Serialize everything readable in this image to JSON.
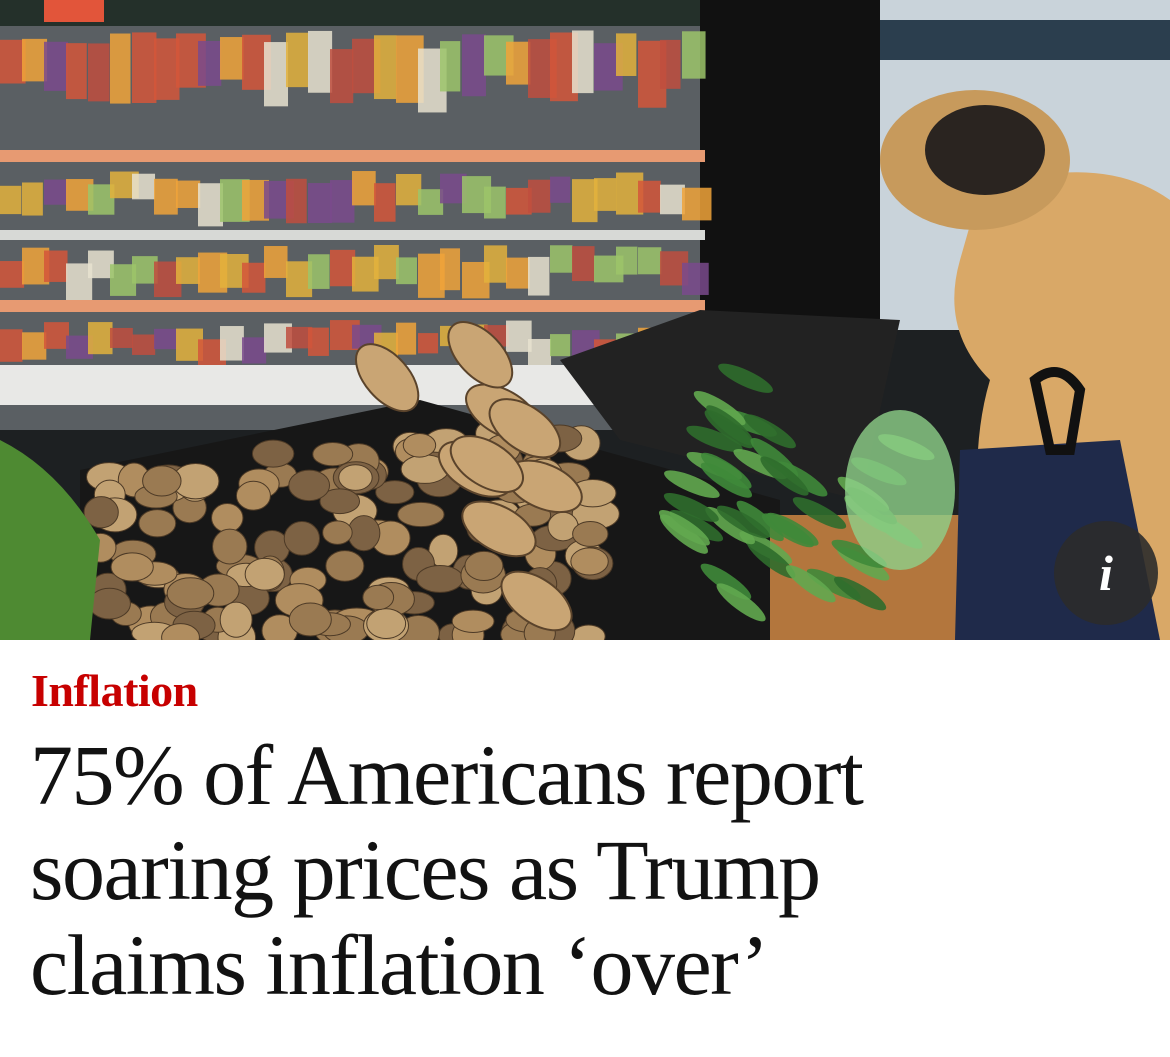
{
  "image": {
    "info_button": "i"
  },
  "article": {
    "kicker": "Inflation",
    "headline": [
      "75% of Americans report",
      "soaring prices as Trump",
      "claims inflation ‘over’"
    ]
  }
}
